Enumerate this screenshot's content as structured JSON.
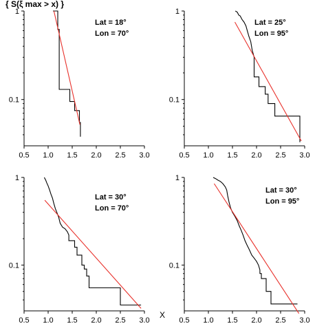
{
  "header_fragment": "{ S(ξ max > x) }",
  "x_axis_label": "X",
  "colors": {
    "empirical": "#000000",
    "fit": "#e8302a",
    "axes": "#000000"
  },
  "chart_data": [
    {
      "type": "line",
      "annotation": [
        "Lat = 18°",
        "Lon = 70°"
      ],
      "xlim": [
        0.5,
        3.0
      ],
      "ylim": [
        0.03,
        1.0
      ],
      "yscale": "log",
      "xticks": [
        "0.5",
        "1.0",
        "1.5",
        "2.0",
        "2.5",
        "3.0"
      ],
      "yticks": [
        {
          "value": 1,
          "label": "1"
        },
        {
          "value": 0.1,
          "label": "0.1"
        }
      ],
      "series": [
        {
          "values": [
            [
              1.1,
              1.0
            ],
            [
              1.2,
              1.0
            ],
            [
              1.2,
              0.62
            ],
            [
              1.23,
              0.62
            ],
            [
              1.23,
              0.13
            ],
            [
              1.45,
              0.13
            ],
            [
              1.45,
              0.095
            ],
            [
              1.55,
              0.095
            ],
            [
              1.55,
              0.075
            ],
            [
              1.65,
              0.075
            ],
            [
              1.65,
              0.055
            ],
            [
              1.67,
              0.055
            ],
            [
              1.67,
              0.038
            ]
          ]
        },
        {
          "values": [
            [
              1.12,
              1.0
            ],
            [
              1.66,
              0.052
            ]
          ]
        }
      ]
    },
    {
      "type": "line",
      "annotation": [
        "Lat = 25°",
        "Lon = 95°"
      ],
      "xlim": [
        0.5,
        3.0
      ],
      "ylim": [
        0.03,
        1.0
      ],
      "yscale": "log",
      "xticks": [
        "0.5",
        "1.0",
        "1.5",
        "2.0",
        "2.5",
        "3.0"
      ],
      "yticks": [
        {
          "value": 1,
          "label": "1"
        },
        {
          "value": 0.1,
          "label": "0.1"
        }
      ],
      "series": [
        {
          "values": [
            [
              1.56,
              1.0
            ],
            [
              1.6,
              0.97
            ],
            [
              1.63,
              0.9
            ],
            [
              1.66,
              0.88
            ],
            [
              1.7,
              0.8
            ],
            [
              1.74,
              0.75
            ],
            [
              1.78,
              0.68
            ],
            [
              1.8,
              0.62
            ],
            [
              1.84,
              0.52
            ],
            [
              1.88,
              0.45
            ],
            [
              1.91,
              0.36
            ],
            [
              1.93,
              0.33
            ],
            [
              1.95,
              0.3
            ],
            [
              1.95,
              0.18
            ],
            [
              2.05,
              0.18
            ],
            [
              2.05,
              0.14
            ],
            [
              2.18,
              0.14
            ],
            [
              2.18,
              0.115
            ],
            [
              2.24,
              0.115
            ],
            [
              2.24,
              0.09
            ],
            [
              2.38,
              0.09
            ],
            [
              2.38,
              0.065
            ],
            [
              2.9,
              0.065
            ],
            [
              2.9,
              0.033
            ]
          ]
        },
        {
          "values": [
            [
              1.55,
              0.75
            ],
            [
              2.93,
              0.034
            ]
          ]
        }
      ]
    },
    {
      "type": "line",
      "annotation": [
        "Lat = 30°",
        "Lon = 70°"
      ],
      "xlim": [
        0.5,
        3.0
      ],
      "ylim": [
        0.03,
        1.0
      ],
      "yscale": "log",
      "xticks": [
        "0.5",
        "1.0",
        "1.5",
        "2.0",
        "2.5",
        "3.0"
      ],
      "yticks": [
        {
          "value": 1,
          "label": "1"
        },
        {
          "value": 0.1,
          "label": "0.1"
        }
      ],
      "series": [
        {
          "values": [
            [
              0.92,
              1.0
            ],
            [
              0.95,
              0.93
            ],
            [
              0.97,
              0.87
            ],
            [
              1.0,
              0.8
            ],
            [
              1.03,
              0.72
            ],
            [
              1.06,
              0.64
            ],
            [
              1.09,
              0.58
            ],
            [
              1.12,
              0.5
            ],
            [
              1.15,
              0.44
            ],
            [
              1.18,
              0.4
            ],
            [
              1.22,
              0.35
            ],
            [
              1.25,
              0.3
            ],
            [
              1.3,
              0.27
            ],
            [
              1.35,
              0.26
            ],
            [
              1.4,
              0.24
            ],
            [
              1.43,
              0.22
            ],
            [
              1.43,
              0.19
            ],
            [
              1.55,
              0.19
            ],
            [
              1.55,
              0.16
            ],
            [
              1.6,
              0.16
            ],
            [
              1.6,
              0.13
            ],
            [
              1.7,
              0.13
            ],
            [
              1.7,
              0.1
            ],
            [
              1.75,
              0.1
            ],
            [
              1.75,
              0.09
            ],
            [
              1.8,
              0.09
            ],
            [
              1.8,
              0.075
            ],
            [
              1.85,
              0.075
            ],
            [
              1.85,
              0.055
            ],
            [
              2.5,
              0.055
            ],
            [
              2.5,
              0.035
            ],
            [
              2.93,
              0.035
            ]
          ]
        },
        {
          "values": [
            [
              0.93,
              0.55
            ],
            [
              2.93,
              0.032
            ]
          ]
        }
      ]
    },
    {
      "type": "line",
      "annotation": [
        "Lat = 30°",
        "Lon = 95°"
      ],
      "xlim": [
        0.5,
        3.0
      ],
      "ylim": [
        0.03,
        1.0
      ],
      "yscale": "log",
      "xticks": [
        "0.5",
        "1.0",
        "1.5",
        "2.0",
        "2.5",
        "3.0"
      ],
      "yticks": [
        {
          "value": 1,
          "label": "1"
        },
        {
          "value": 0.1,
          "label": "0.1"
        }
      ],
      "series": [
        {
          "values": [
            [
              1.1,
              1.0
            ],
            [
              1.15,
              0.97
            ],
            [
              1.2,
              0.93
            ],
            [
              1.25,
              0.9
            ],
            [
              1.3,
              0.85
            ],
            [
              1.35,
              0.78
            ],
            [
              1.38,
              0.72
            ],
            [
              1.4,
              0.62
            ],
            [
              1.43,
              0.52
            ],
            [
              1.46,
              0.45
            ],
            [
              1.5,
              0.4
            ],
            [
              1.55,
              0.36
            ],
            [
              1.6,
              0.32
            ],
            [
              1.64,
              0.28
            ],
            [
              1.68,
              0.25
            ],
            [
              1.72,
              0.22
            ],
            [
              1.76,
              0.19
            ],
            [
              1.8,
              0.17
            ],
            [
              1.85,
              0.15
            ],
            [
              1.9,
              0.13
            ],
            [
              1.95,
              0.12
            ],
            [
              2.0,
              0.11
            ],
            [
              2.04,
              0.1
            ],
            [
              2.07,
              0.088
            ],
            [
              2.07,
              0.08
            ],
            [
              2.1,
              0.08
            ],
            [
              2.1,
              0.07
            ],
            [
              2.2,
              0.07
            ],
            [
              2.2,
              0.05
            ],
            [
              2.3,
              0.05
            ],
            [
              2.3,
              0.036
            ],
            [
              2.85,
              0.036
            ]
          ]
        },
        {
          "values": [
            [
              1.12,
              0.85
            ],
            [
              2.88,
              0.028
            ]
          ]
        }
      ]
    }
  ]
}
